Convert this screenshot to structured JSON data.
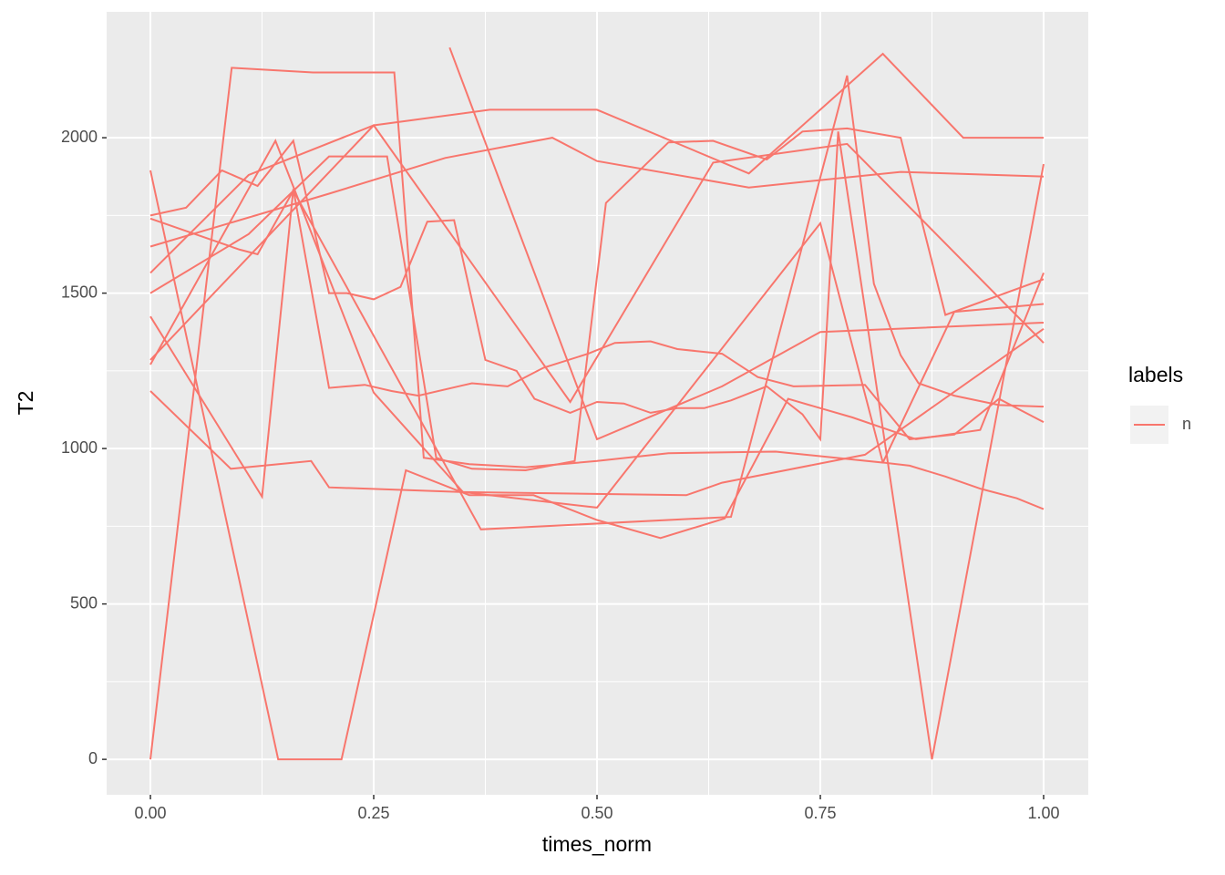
{
  "chart_data": {
    "type": "line",
    "x_label": "times_norm",
    "y_label": "T2",
    "color": "#F8766D",
    "legend": {
      "title": "labels",
      "entries": [
        "n"
      ]
    },
    "xlim": [
      -0.049,
      1.05
    ],
    "ylim": [
      -114,
      2405
    ],
    "xticks": [
      {
        "value": 0,
        "label": "0.00"
      },
      {
        "value": 0.25,
        "label": "0.25"
      },
      {
        "value": 0.5,
        "label": "0.50"
      },
      {
        "value": 0.75,
        "label": "0.75"
      },
      {
        "value": 1,
        "label": "1.00"
      }
    ],
    "yticks": [
      0,
      500,
      1000,
      1500,
      2000
    ],
    "grid": true,
    "series": [
      {
        "x": [
          0,
          0.143,
          0.214,
          0.286,
          0.357,
          0.429,
          0.5,
          0.571,
          0.643,
          0.714,
          0.786,
          0.857,
          0.929,
          1
        ],
        "values": [
          1895,
          0,
          0,
          930,
          850,
          850,
          770,
          712,
          775,
          1160,
          1100,
          1030,
          1060,
          1565
        ]
      },
      {
        "x": [
          0,
          0.091,
          0.182,
          0.273,
          0.306,
          0.357,
          0.42,
          0.5,
          0.58,
          0.7,
          0.82,
          0.9,
          1
        ],
        "values": [
          0,
          2225,
          2210,
          2210,
          970,
          950,
          940,
          960,
          985,
          990,
          955,
          1440,
          1465
        ]
      },
      {
        "x": [
          0,
          0.04,
          0.08,
          0.12,
          0.16,
          0.2,
          0.22,
          0.25,
          0.28,
          0.31,
          0.34,
          0.375,
          0.41,
          0.43,
          0.47,
          0.5,
          0.53,
          0.56,
          0.59,
          0.62,
          0.65,
          0.69,
          0.73,
          0.75,
          0.77,
          0.8,
          0.875,
          1
        ],
        "values": [
          1750,
          1775,
          1895,
          1845,
          1990,
          1500,
          1500,
          1480,
          1520,
          1730,
          1735,
          1285,
          1250,
          1160,
          1115,
          1150,
          1145,
          1115,
          1130,
          1130,
          1155,
          1200,
          1110,
          1030,
          2020,
          1450,
          0,
          1915
        ]
      },
      {
        "x": [
          0,
          0.125,
          0.16,
          0.2,
          0.24,
          0.27,
          0.3,
          0.36,
          0.4,
          0.44,
          0.49,
          0.52,
          0.56,
          0.59,
          0.64,
          0.68,
          0.72,
          0.8,
          0.85,
          0.9,
          0.95,
          1
        ],
        "values": [
          1425,
          845,
          1835,
          1195,
          1205,
          1185,
          1170,
          1210,
          1200,
          1260,
          1305,
          1340,
          1345,
          1320,
          1305,
          1230,
          1200,
          1205,
          1030,
          1045,
          1160,
          1085
        ]
      },
      {
        "x": [
          0,
          0.09,
          0.18,
          0.2,
          0.35,
          0.6,
          0.64,
          0.8,
          1
        ],
        "values": [
          1185,
          935,
          960,
          875,
          860,
          850,
          890,
          980,
          1385
        ]
      },
      {
        "x": [
          0,
          0.1,
          0.12,
          0.16,
          0.37,
          0.65,
          0.78,
          0.81,
          0.84,
          0.86,
          0.9,
          0.95,
          1
        ],
        "values": [
          1740,
          1640,
          1625,
          1830,
          740,
          780,
          2200,
          1530,
          1300,
          1210,
          1170,
          1140,
          1135
        ]
      },
      {
        "x": [
          0,
          0.11,
          0.25,
          0.38,
          0.5,
          0.67,
          0.82,
          0.91,
          1
        ],
        "values": [
          1565,
          1880,
          2040,
          2090,
          2090,
          1885,
          2270,
          2000,
          2000
        ]
      },
      {
        "x": [
          0,
          0.14,
          0.25,
          0.35,
          0.5,
          0.75,
          0.82,
          0.85,
          0.89,
          0.93,
          0.97,
          1
        ],
        "values": [
          1270,
          1990,
          1180,
          860,
          810,
          1725,
          955,
          945,
          910,
          870,
          840,
          805
        ]
      },
      {
        "x": [
          0,
          0.11,
          0.2,
          0.265,
          0.32,
          0.36,
          0.42,
          0.475,
          0.51,
          0.58,
          0.63,
          0.69,
          0.73,
          0.78,
          0.84,
          0.89,
          1
        ],
        "values": [
          1500,
          1690,
          1940,
          1940,
          970,
          935,
          930,
          960,
          1790,
          1985,
          1990,
          1930,
          2020,
          2030,
          2000,
          1430,
          1545
        ]
      },
      {
        "x": [
          0,
          0.2,
          0.33,
          0.45,
          0.5,
          0.67,
          0.84,
          1
        ],
        "values": [
          1650,
          1820,
          1935,
          2000,
          1925,
          1840,
          1890,
          1875
        ]
      },
      {
        "x": [
          0,
          0.25,
          0.47,
          0.63,
          0.78,
          1
        ],
        "values": [
          1285,
          2040,
          1150,
          1920,
          1980,
          1340
        ]
      },
      {
        "x": [
          0.335,
          0.5,
          0.64,
          0.75,
          1
        ],
        "values": [
          2290,
          1030,
          1200,
          1375,
          1405
        ]
      }
    ]
  }
}
